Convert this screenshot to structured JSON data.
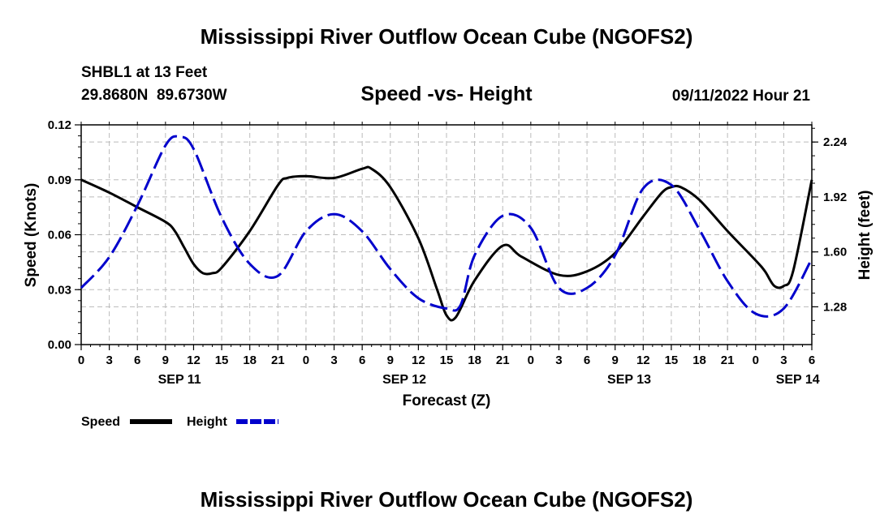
{
  "chart_data": {
    "type": "line",
    "title": "Mississippi River Outflow Ocean Cube (NGOFS2)",
    "station": "SHBL1 at 13 Feet",
    "coords": "29.8680N  89.6730W",
    "subtitle": "Speed -vs- Height",
    "datetime": "09/11/2022 Hour 21",
    "xlabel": "Forecast (Z)",
    "ylabel_left": "Speed (Knots)",
    "ylabel_right": "Height (feet)",
    "x_range_hours": [
      0,
      78
    ],
    "x_ticks": [
      {
        "h": 0,
        "label": "0"
      },
      {
        "h": 3,
        "label": "3"
      },
      {
        "h": 6,
        "label": "6"
      },
      {
        "h": 9,
        "label": "9"
      },
      {
        "h": 12,
        "label": "12"
      },
      {
        "h": 15,
        "label": "15"
      },
      {
        "h": 18,
        "label": "18"
      },
      {
        "h": 21,
        "label": "21"
      },
      {
        "h": 24,
        "label": "0"
      },
      {
        "h": 27,
        "label": "3"
      },
      {
        "h": 30,
        "label": "6"
      },
      {
        "h": 33,
        "label": "9"
      },
      {
        "h": 36,
        "label": "12"
      },
      {
        "h": 39,
        "label": "15"
      },
      {
        "h": 42,
        "label": "18"
      },
      {
        "h": 45,
        "label": "21"
      },
      {
        "h": 48,
        "label": "0"
      },
      {
        "h": 51,
        "label": "3"
      },
      {
        "h": 54,
        "label": "6"
      },
      {
        "h": 57,
        "label": "9"
      },
      {
        "h": 60,
        "label": "12"
      },
      {
        "h": 63,
        "label": "15"
      },
      {
        "h": 66,
        "label": "18"
      },
      {
        "h": 69,
        "label": "21"
      },
      {
        "h": 72,
        "label": "0"
      },
      {
        "h": 75,
        "label": "3"
      },
      {
        "h": 78,
        "label": "6"
      }
    ],
    "date_labels": [
      {
        "h": 10.5,
        "label": "SEP 11"
      },
      {
        "h": 34.5,
        "label": "SEP 12"
      },
      {
        "h": 58.5,
        "label": "SEP 13"
      },
      {
        "h": 76.5,
        "label": "SEP 14"
      }
    ],
    "ylim_left": [
      0,
      0.12
    ],
    "yticks_left": [
      {
        "v": 0,
        "label": "0.00"
      },
      {
        "v": 0.03,
        "label": "0.03"
      },
      {
        "v": 0.06,
        "label": "0.06"
      },
      {
        "v": 0.09,
        "label": "0.09"
      },
      {
        "v": 0.12,
        "label": "0.12"
      }
    ],
    "ylim_right": [
      1.06,
      2.34
    ],
    "yticks_right": [
      {
        "v": 1.28,
        "label": "1.28"
      },
      {
        "v": 1.6,
        "label": "1.60"
      },
      {
        "v": 1.92,
        "label": "1.92"
      },
      {
        "v": 2.24,
        "label": "2.24"
      }
    ],
    "grid": true,
    "series": [
      {
        "name": "Speed",
        "color": "#000000",
        "style": "solid",
        "axis": "left",
        "x": [
          0,
          3,
          6,
          9,
          10,
          11,
          12,
          13,
          14,
          15,
          18,
          21,
          22,
          24,
          27,
          30,
          31,
          33,
          36,
          38,
          39,
          40,
          42,
          45,
          47,
          51,
          54,
          57,
          60,
          62,
          63,
          64,
          66,
          69,
          72,
          73,
          74,
          75,
          76,
          78
        ],
        "values": [
          0.09,
          0.083,
          0.075,
          0.067,
          0.062,
          0.053,
          0.044,
          0.039,
          0.039,
          0.042,
          0.062,
          0.087,
          0.091,
          0.092,
          0.091,
          0.096,
          0.096,
          0.086,
          0.058,
          0.03,
          0.016,
          0.015,
          0.035,
          0.054,
          0.048,
          0.038,
          0.04,
          0.05,
          0.07,
          0.083,
          0.086,
          0.086,
          0.079,
          0.062,
          0.046,
          0.04,
          0.032,
          0.032,
          0.04,
          0.09
        ]
      },
      {
        "name": "Height",
        "color": "#0000cc",
        "style": "dashed",
        "axis": "right",
        "x": [
          0,
          3,
          6,
          9,
          10.5,
          12,
          15,
          18,
          21,
          24,
          27,
          30,
          33,
          36,
          39,
          40.5,
          42,
          45,
          48,
          51,
          54,
          57,
          60,
          63,
          66,
          69,
          72,
          75,
          78
        ],
        "values": [
          1.39,
          1.57,
          1.87,
          2.22,
          2.27,
          2.2,
          1.8,
          1.53,
          1.46,
          1.72,
          1.82,
          1.72,
          1.5,
          1.33,
          1.27,
          1.29,
          1.58,
          1.81,
          1.74,
          1.39,
          1.39,
          1.58,
          1.97,
          1.99,
          1.73,
          1.43,
          1.24,
          1.27,
          1.56
        ]
      }
    ],
    "legend": [
      {
        "label": "Speed",
        "color": "#000000",
        "style": "solid"
      },
      {
        "label": "Height",
        "color": "#0000cc",
        "style": "dashed"
      }
    ],
    "footer_title": "Mississippi River Outflow Ocean Cube (NGOFS2)"
  }
}
